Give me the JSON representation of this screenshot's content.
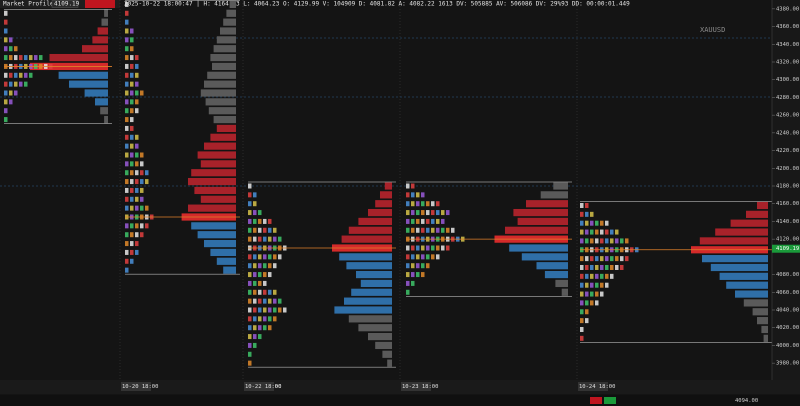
{
  "header": {
    "title": "Market Profile",
    "price_box": "4109.19",
    "info": "2025-10-22 18:00:47 | H: 4164.63 L: 4064.23 O: 4129.99 V: 104909 D: 4081.82 A: 4082.22 1613 DV: 505885 AV: 506086 DV: 29%93 DD: 00:00:01.449"
  },
  "symbol": "XAUUSD",
  "price_axis": {
    "ylim": [
      3970,
      4390
    ],
    "ticks": [
      {
        "value": 4380,
        "label": "4380.00"
      },
      {
        "value": 4360,
        "label": "4360.00"
      },
      {
        "value": 4340,
        "label": "4340.00"
      },
      {
        "value": 4320,
        "label": "4320.00"
      },
      {
        "value": 4300,
        "label": "4300.00"
      },
      {
        "value": 4280,
        "label": "4280.00"
      },
      {
        "value": 4260,
        "label": "4260.00"
      },
      {
        "value": 4240,
        "label": "4240.00"
      },
      {
        "value": 4220,
        "label": "4220.00"
      },
      {
        "value": 4200,
        "label": "4200.00"
      },
      {
        "value": 4180,
        "label": "4180.00"
      },
      {
        "value": 4160,
        "label": "4160.00"
      },
      {
        "value": 4140,
        "label": "4140.00"
      },
      {
        "value": 4120,
        "label": "4120.00"
      },
      {
        "value": 4080,
        "label": "4080.00"
      },
      {
        "value": 4060,
        "label": "4060.00"
      },
      {
        "value": 4040,
        "label": "4040.00"
      },
      {
        "value": 4020,
        "label": "4020.00"
      },
      {
        "value": 4000,
        "label": "4000.00"
      },
      {
        "value": 3980,
        "label": "3980.00"
      }
    ],
    "current": {
      "value": 4109.19,
      "label": "4109.19"
    }
  },
  "sessions": [
    {
      "date": "10-20 18:00",
      "price_top": 4375,
      "volumes": [
        3,
        5,
        8,
        12,
        20,
        45,
        60,
        38,
        30,
        18,
        10,
        6,
        3
      ]
    },
    {
      "date": "10-21 18:00",
      "price_top": 4385,
      "volumes": [
        4,
        6,
        8,
        10,
        12,
        14,
        16,
        15,
        18,
        20,
        22,
        19,
        17,
        14,
        12,
        16,
        20,
        24,
        22,
        28,
        30,
        26,
        22,
        30,
        34,
        28,
        24,
        20,
        16,
        12,
        8
      ]
    },
    {
      "date": "10-22 18:00",
      "price_top": 4180,
      "volumes": [
        6,
        10,
        14,
        20,
        28,
        36,
        42,
        50,
        44,
        38,
        30,
        26,
        34,
        40,
        48,
        36,
        28,
        20,
        14,
        8,
        4
      ]
    },
    {
      "date": "10-23 18:00",
      "price_top": 4180,
      "volumes": [
        14,
        26,
        40,
        52,
        48,
        60,
        70,
        56,
        44,
        30,
        22,
        12,
        6
      ]
    },
    {
      "date": "10-24 18:00",
      "price_top": 4158,
      "volumes": [
        10,
        20,
        34,
        48,
        62,
        70,
        60,
        52,
        44,
        38,
        30,
        22,
        14,
        10,
        6,
        4
      ]
    }
  ],
  "status_price": "4094.00"
}
